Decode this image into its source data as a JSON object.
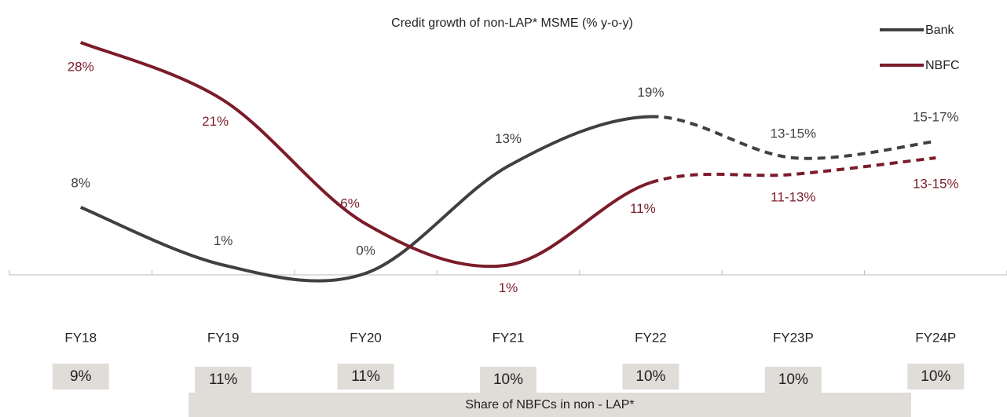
{
  "chart_data": {
    "type": "line",
    "title": "Credit growth of non-LAP* MSME (% y-o-y)",
    "categories": [
      "FY18",
      "FY19",
      "FY20",
      "FY21",
      "FY22",
      "FY23P",
      "FY24P"
    ],
    "series": [
      {
        "name": "Bank",
        "color": "#404040",
        "values": [
          8,
          1,
          0,
          13,
          19,
          14,
          16
        ],
        "value_labels": [
          "8%",
          "1%",
          "0%",
          "13%",
          "19%",
          "13-15%",
          "15-17%"
        ]
      },
      {
        "name": "NBFC",
        "color": "#7b1c2a",
        "values": [
          28,
          21,
          6,
          1,
          11,
          12,
          14
        ],
        "value_labels": [
          "28%",
          "21%",
          "6%",
          "1%",
          "11%",
          "11-13%",
          "13-15%"
        ]
      }
    ],
    "ylim": [
      0,
      30
    ],
    "legend": "top-right",
    "share": {
      "label": "Share of NBFCs in non - LAP*",
      "values": [
        9,
        11,
        11,
        10,
        10,
        10,
        10
      ],
      "value_labels": [
        "9%",
        "11%",
        "11%",
        "10%",
        "10%",
        "10%",
        "10%"
      ]
    }
  }
}
